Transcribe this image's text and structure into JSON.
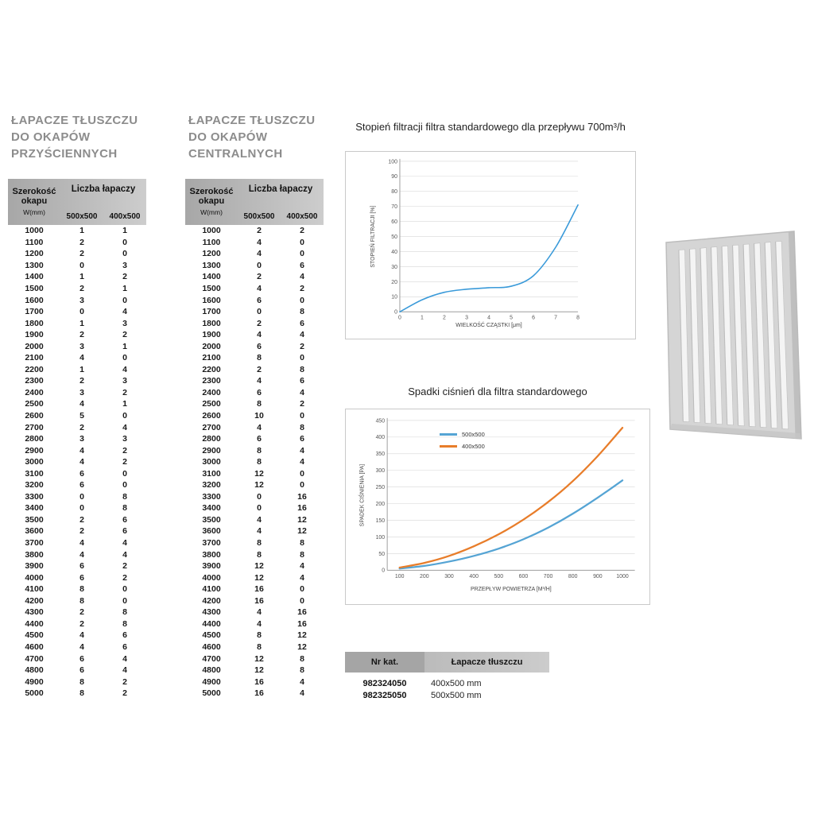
{
  "wall_table": {
    "title_lines": [
      "ŁAPACZE TŁUSZCZU",
      "DO OKAPÓW",
      "PRZYŚCIENNYCH"
    ],
    "header": {
      "width_label": "Szerokość okapu",
      "width_unit": "W(mm)",
      "group_label": "Liczba łapaczy",
      "col_500": "500x500",
      "col_400": "400x500"
    },
    "rows": [
      [
        1000,
        1,
        1
      ],
      [
        1100,
        2,
        0
      ],
      [
        1200,
        2,
        0
      ],
      [
        1300,
        0,
        3
      ],
      [
        1400,
        1,
        2
      ],
      [
        1500,
        2,
        1
      ],
      [
        1600,
        3,
        0
      ],
      [
        1700,
        0,
        4
      ],
      [
        1800,
        1,
        3
      ],
      [
        1900,
        2,
        2
      ],
      [
        2000,
        3,
        1
      ],
      [
        2100,
        4,
        0
      ],
      [
        2200,
        1,
        4
      ],
      [
        2300,
        2,
        3
      ],
      [
        2400,
        3,
        2
      ],
      [
        2500,
        4,
        1
      ],
      [
        2600,
        5,
        0
      ],
      [
        2700,
        2,
        4
      ],
      [
        2800,
        3,
        3
      ],
      [
        2900,
        4,
        2
      ],
      [
        3000,
        4,
        2
      ],
      [
        3100,
        6,
        0
      ],
      [
        3200,
        6,
        0
      ],
      [
        3300,
        0,
        8
      ],
      [
        3400,
        0,
        8
      ],
      [
        3500,
        2,
        6
      ],
      [
        3600,
        2,
        6
      ],
      [
        3700,
        4,
        4
      ],
      [
        3800,
        4,
        4
      ],
      [
        3900,
        6,
        2
      ],
      [
        4000,
        6,
        2
      ],
      [
        4100,
        8,
        0
      ],
      [
        4200,
        8,
        0
      ],
      [
        4300,
        2,
        8
      ],
      [
        4400,
        2,
        8
      ],
      [
        4500,
        4,
        6
      ],
      [
        4600,
        4,
        6
      ],
      [
        4700,
        6,
        4
      ],
      [
        4800,
        6,
        4
      ],
      [
        4900,
        8,
        2
      ],
      [
        5000,
        8,
        2
      ]
    ]
  },
  "central_table": {
    "title_lines": [
      "ŁAPACZE TŁUSZCZU",
      "DO OKAPÓW",
      "CENTRALNYCH"
    ],
    "header": {
      "width_label": "Szerokość okapu",
      "width_unit": "W(mm)",
      "group_label": "Liczba łapaczy",
      "col_500": "500x500",
      "col_400": "400x500"
    },
    "rows": [
      [
        1000,
        2,
        2
      ],
      [
        1100,
        4,
        0
      ],
      [
        1200,
        4,
        0
      ],
      [
        1300,
        0,
        6
      ],
      [
        1400,
        2,
        4
      ],
      [
        1500,
        4,
        2
      ],
      [
        1600,
        6,
        0
      ],
      [
        1700,
        0,
        8
      ],
      [
        1800,
        2,
        6
      ],
      [
        1900,
        4,
        4
      ],
      [
        2000,
        6,
        2
      ],
      [
        2100,
        8,
        0
      ],
      [
        2200,
        2,
        8
      ],
      [
        2300,
        4,
        6
      ],
      [
        2400,
        6,
        4
      ],
      [
        2500,
        8,
        2
      ],
      [
        2600,
        10,
        0
      ],
      [
        2700,
        4,
        8
      ],
      [
        2800,
        6,
        6
      ],
      [
        2900,
        8,
        4
      ],
      [
        3000,
        8,
        4
      ],
      [
        3100,
        12,
        0
      ],
      [
        3200,
        12,
        0
      ],
      [
        3300,
        0,
        16
      ],
      [
        3400,
        0,
        16
      ],
      [
        3500,
        4,
        12
      ],
      [
        3600,
        4,
        12
      ],
      [
        3700,
        8,
        8
      ],
      [
        3800,
        8,
        8
      ],
      [
        3900,
        12,
        4
      ],
      [
        4000,
        12,
        4
      ],
      [
        4100,
        16,
        0
      ],
      [
        4200,
        16,
        0
      ],
      [
        4300,
        4,
        16
      ],
      [
        4400,
        4,
        16
      ],
      [
        4500,
        8,
        12
      ],
      [
        4600,
        8,
        12
      ],
      [
        4700,
        12,
        8
      ],
      [
        4800,
        12,
        8
      ],
      [
        4900,
        16,
        4
      ],
      [
        5000,
        16,
        4
      ]
    ]
  },
  "chart_data": [
    {
      "type": "line",
      "title": "Stopień filtracji filtra standardowego dla przepływu 700m³/h",
      "xlabel": "WIELKOŚĆ CZĄSTKI [μm]",
      "ylabel": "STOPIEŃ FILTRACJI [%]",
      "xlim": [
        0,
        8
      ],
      "ylim": [
        0,
        100
      ],
      "xticks": [
        0,
        1,
        2,
        3,
        4,
        5,
        6,
        7,
        8
      ],
      "yticks": [
        0,
        10,
        20,
        30,
        40,
        50,
        60,
        70,
        80,
        90,
        100
      ],
      "grid": "horizontal",
      "legend_position": "none",
      "series": [
        {
          "name": "stopień filtracji",
          "color": "#3a9ad9",
          "x": [
            0,
            1,
            2,
            3,
            4,
            5,
            6,
            7,
            8
          ],
          "y": [
            0,
            8,
            13,
            15,
            16,
            17,
            24,
            43,
            71
          ]
        }
      ]
    },
    {
      "type": "line",
      "title": "Spadki ciśnień dla filtra standardowego",
      "xlabel": "PRZEPŁYW POWIETRZA [M³/H]",
      "ylabel": "SPADEK CIŚNIENIA [PA]",
      "xlim": [
        50,
        1050
      ],
      "ylim": [
        0,
        450
      ],
      "xticks": [
        100,
        200,
        300,
        400,
        500,
        600,
        700,
        800,
        900,
        1000
      ],
      "yticks": [
        0,
        50,
        100,
        150,
        200,
        250,
        300,
        350,
        400,
        450
      ],
      "grid": "horizontal",
      "legend_position": "top-center",
      "series": [
        {
          "name": "500x500",
          "color": "#55a4d4",
          "x": [
            100,
            200,
            300,
            400,
            500,
            600,
            700,
            800,
            900,
            1000
          ],
          "y": [
            5,
            13,
            26,
            43,
            65,
            93,
            128,
            170,
            218,
            270
          ]
        },
        {
          "name": "400x500",
          "color": "#e87d2a",
          "x": [
            100,
            200,
            300,
            400,
            500,
            600,
            700,
            800,
            900,
            1000
          ],
          "y": [
            8,
            22,
            43,
            72,
            108,
            152,
            205,
            268,
            343,
            428
          ]
        }
      ]
    }
  ],
  "catalog_table": {
    "col1_header": "Nr kat.",
    "col2_header": "Łapacze tłuszczu",
    "rows": [
      {
        "nr": "982324050",
        "size": "400x500 mm"
      },
      {
        "nr": "982325050",
        "size": "500x500 mm"
      }
    ]
  },
  "filter_image": {
    "name": "baffle-grease-filter",
    "slats": 10,
    "body_color": "#d5d5d5",
    "slot_color": "#f4f4f4",
    "edge_color": "#b7b7b7",
    "outline_color": "#bdbdbd"
  }
}
